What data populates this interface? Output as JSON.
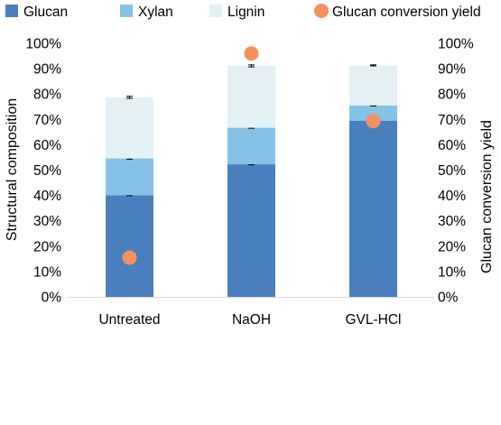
{
  "chart_data": {
    "type": "bar",
    "stacked": true,
    "categories": [
      "Untreated",
      "NaOH",
      "GVL-HCl"
    ],
    "series": [
      {
        "name": "Glucan",
        "values": [
          40.1,
          52.3,
          69.5
        ],
        "errors": [
          0.2,
          0.2,
          0.2
        ],
        "color": "#4a7fbe"
      },
      {
        "name": "Xylan",
        "values": [
          14.5,
          14.4,
          6.0
        ],
        "errors": [
          0.3,
          0.2,
          0.2
        ],
        "color": "#85c2e6"
      },
      {
        "name": "Lignin",
        "values": [
          24.1,
          24.4,
          15.8
        ],
        "errors": [
          0.4,
          0.4,
          0.2
        ],
        "color": "#e3f1f5"
      }
    ],
    "overlay": {
      "name": "Glucan conversion yield",
      "type": "scatter",
      "axis": "right",
      "values": [
        15.5,
        96.0,
        69.3
      ],
      "errors": [
        0.0,
        1.8,
        1.8
      ],
      "color": "#f4915e"
    },
    "ylabel": "Structural composition",
    "ylabel_right": "Glucan conversion yield",
    "ylim": [
      0,
      100
    ],
    "y2lim": [
      0,
      100
    ],
    "yticks": [
      "0%",
      "10%",
      "20%",
      "30%",
      "40%",
      "50%",
      "60%",
      "70%",
      "80%",
      "90%",
      "100%"
    ],
    "legend_position": "top",
    "grid": false
  }
}
